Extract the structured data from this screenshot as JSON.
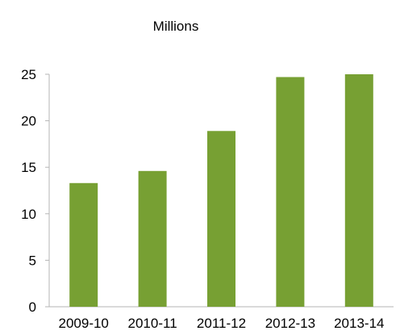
{
  "chart_data": {
    "type": "bar",
    "title": "",
    "unit_label": "Millions",
    "xlabel": "",
    "ylabel": "",
    "categories": [
      "2009-10",
      "2010-11",
      "2011-12",
      "2012-13",
      "2013-14"
    ],
    "values": [
      13.3,
      14.6,
      18.9,
      24.7,
      25.0
    ],
    "ylim": [
      0,
      25
    ],
    "yticks": [
      "0",
      "5",
      "10",
      "15",
      "20",
      "25"
    ],
    "grid": false,
    "legend": "none",
    "bar_color": "#77A033"
  }
}
